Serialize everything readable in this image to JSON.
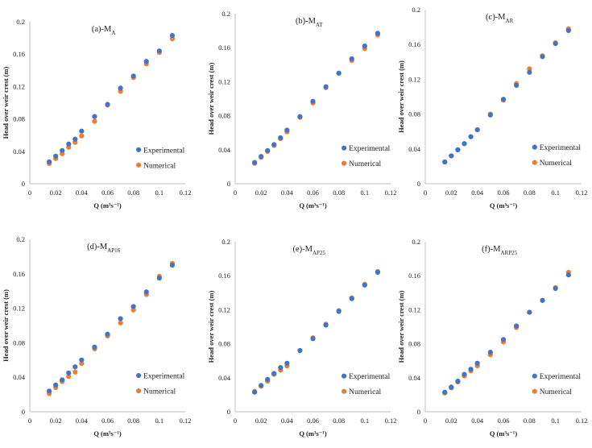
{
  "colors": {
    "experimental": "#4472c4",
    "numerical": "#ed7d31",
    "axis": "#bfbfbf",
    "text": "#222222"
  },
  "chart_data": [
    {
      "type": "scatter",
      "title": "(a)-M",
      "title_sub": "A",
      "xlabel": "Q (m³s⁻¹)",
      "ylabel": "Head over weir crest (m)",
      "xlim": [
        0,
        0.12
      ],
      "ylim": [
        0,
        0.2
      ],
      "xticks": [
        "0",
        "0.02",
        "0.04",
        "0.06",
        "0.08",
        "0.1",
        "0.12"
      ],
      "yticks": [
        "0",
        "0.04",
        "0.08",
        "0.12",
        "0.16",
        "0.2"
      ],
      "legend": [
        "Experimental",
        "Numerical"
      ],
      "series": [
        {
          "name": "Experimental",
          "x": [
            0.015,
            0.02,
            0.025,
            0.03,
            0.035,
            0.04,
            0.05,
            0.06,
            0.07,
            0.08,
            0.09,
            0.1,
            0.11
          ],
          "y": [
            0.027,
            0.034,
            0.041,
            0.049,
            0.055,
            0.065,
            0.083,
            0.098,
            0.118,
            0.133,
            0.151,
            0.164,
            0.183
          ]
        },
        {
          "name": "Numerical",
          "x": [
            0.015,
            0.02,
            0.025,
            0.03,
            0.035,
            0.04,
            0.05,
            0.06,
            0.07,
            0.08,
            0.09,
            0.1,
            0.11
          ],
          "y": [
            0.025,
            0.031,
            0.037,
            0.045,
            0.051,
            0.059,
            0.077,
            0.097,
            0.114,
            0.131,
            0.148,
            0.162,
            0.179
          ]
        }
      ]
    },
    {
      "type": "scatter",
      "title": "(b)-M",
      "title_sub": "AT",
      "xlabel": "Q (m³s⁻¹)",
      "ylabel": "Head over weir crest (m)",
      "xlim": [
        0,
        0.12
      ],
      "ylim": [
        0,
        0.2
      ],
      "xticks": [
        "0",
        "0.02",
        "0.04",
        "0.06",
        "0.08",
        "0.1",
        "0.12"
      ],
      "yticks": [
        "0",
        "0.04",
        "0.08",
        "0.12",
        "0.16",
        "0.2"
      ],
      "legend": [
        "Experimental",
        "Numerical"
      ],
      "series": [
        {
          "name": "Experimental",
          "x": [
            0.015,
            0.02,
            0.025,
            0.03,
            0.035,
            0.04,
            0.05,
            0.06,
            0.07,
            0.08,
            0.09,
            0.1,
            0.11
          ],
          "y": [
            0.025,
            0.032,
            0.039,
            0.046,
            0.054,
            0.063,
            0.079,
            0.097,
            0.114,
            0.13,
            0.147,
            0.162,
            0.177
          ]
        },
        {
          "name": "Numerical",
          "x": [
            0.015,
            0.02,
            0.025,
            0.03,
            0.035,
            0.04,
            0.05,
            0.06,
            0.07,
            0.08,
            0.09,
            0.1,
            0.11
          ],
          "y": [
            0.024,
            0.031,
            0.038,
            0.045,
            0.053,
            0.061,
            0.078,
            0.095,
            0.113,
            0.13,
            0.145,
            0.159,
            0.175
          ]
        }
      ]
    },
    {
      "type": "scatter",
      "title": "(c)-M",
      "title_sub": "AR",
      "xlabel": "Q (m³s⁻¹)",
      "ylabel": "Head over weir crest (m)",
      "xlim": [
        0,
        0.12
      ],
      "ylim": [
        0,
        0.2
      ],
      "xticks": [
        "0",
        "0.02",
        "0.04",
        "0.06",
        "0.08",
        "0.1",
        "0.12"
      ],
      "yticks": [
        "0",
        "0.04",
        "0.08",
        "0.12",
        "0.16",
        "0.2"
      ],
      "legend": [
        "Experimental",
        "Numerical"
      ],
      "series": [
        {
          "name": "Experimental",
          "x": [
            0.015,
            0.02,
            0.025,
            0.03,
            0.035,
            0.04,
            0.05,
            0.06,
            0.07,
            0.08,
            0.09,
            0.1,
            0.11
          ],
          "y": [
            0.025,
            0.032,
            0.039,
            0.046,
            0.054,
            0.062,
            0.079,
            0.097,
            0.113,
            0.128,
            0.146,
            0.161,
            0.176
          ]
        },
        {
          "name": "Numerical",
          "x": [
            0.015,
            0.02,
            0.025,
            0.03,
            0.035,
            0.04,
            0.05,
            0.06,
            0.07,
            0.08,
            0.09,
            0.1,
            0.11
          ],
          "y": [
            0.025,
            0.032,
            0.039,
            0.046,
            0.054,
            0.062,
            0.08,
            0.096,
            0.115,
            0.132,
            0.147,
            0.162,
            0.178
          ]
        }
      ]
    },
    {
      "type": "scatter",
      "title": "(d)-M",
      "title_sub": "AP16",
      "xlabel": "Q (m³s⁻¹)",
      "ylabel": "Head over weir crest (m)",
      "xlim": [
        0,
        0.12
      ],
      "ylim": [
        0,
        0.2
      ],
      "xticks": [
        "0",
        "0.02",
        "0.04",
        "0.06",
        "0.08",
        "0.1",
        "0.12"
      ],
      "yticks": [
        "0",
        "0.04",
        "0.08",
        "0.12",
        "0.16",
        "0.2"
      ],
      "legend": [
        "Experimental",
        "Numerical"
      ],
      "series": [
        {
          "name": "Experimental",
          "x": [
            0.015,
            0.02,
            0.025,
            0.03,
            0.035,
            0.04,
            0.05,
            0.06,
            0.07,
            0.08,
            0.09,
            0.1,
            0.11
          ],
          "y": [
            0.024,
            0.031,
            0.037,
            0.045,
            0.052,
            0.06,
            0.075,
            0.09,
            0.108,
            0.122,
            0.139,
            0.155,
            0.17
          ]
        },
        {
          "name": "Numerical",
          "x": [
            0.015,
            0.02,
            0.025,
            0.03,
            0.035,
            0.04,
            0.05,
            0.06,
            0.07,
            0.08,
            0.09,
            0.1,
            0.11
          ],
          "y": [
            0.021,
            0.028,
            0.035,
            0.041,
            0.046,
            0.056,
            0.073,
            0.088,
            0.103,
            0.118,
            0.136,
            0.157,
            0.172
          ]
        }
      ]
    },
    {
      "type": "scatter",
      "title": "(e)-M",
      "title_sub": "AP25",
      "xlabel": "Q (m³s⁻¹)",
      "ylabel": "Head over weir crest (m)",
      "xlim": [
        0,
        0.12
      ],
      "ylim": [
        0,
        0.2
      ],
      "xticks": [
        "0",
        "0.02",
        "0.04",
        "0.06",
        "0.08",
        "0.1",
        "0.12"
      ],
      "yticks": [
        "0",
        "0.04",
        "0.08",
        "0.12",
        "0.16",
        "0.2"
      ],
      "legend": [
        "Experimental",
        "Numerical"
      ],
      "series": [
        {
          "name": "Experimental",
          "x": [
            0.015,
            0.02,
            0.025,
            0.03,
            0.035,
            0.04,
            0.05,
            0.06,
            0.07,
            0.08,
            0.09,
            0.1,
            0.11
          ],
          "y": [
            0.023,
            0.031,
            0.038,
            0.045,
            0.052,
            0.057,
            0.072,
            0.086,
            0.102,
            0.118,
            0.133,
            0.149,
            0.164
          ]
        },
        {
          "name": "Numerical",
          "x": [
            0.015,
            0.02,
            0.025,
            0.03,
            0.035,
            0.04,
            0.05,
            0.06,
            0.07,
            0.08,
            0.09,
            0.1,
            0.11
          ],
          "y": [
            0.024,
            0.03,
            0.036,
            0.044,
            0.049,
            0.054,
            0.072,
            0.087,
            0.103,
            0.119,
            0.134,
            0.15,
            0.165
          ]
        }
      ]
    },
    {
      "type": "scatter",
      "title": "(f)-M",
      "title_sub": "ARP25",
      "xlabel": "Q (m³s⁻¹)",
      "ylabel": "Head over weir crest (m)",
      "xlim": [
        0,
        0.12
      ],
      "ylim": [
        0,
        0.2
      ],
      "xticks": [
        "0",
        "0.02",
        "0.04",
        "0.06",
        "0.08",
        "0.1",
        "0.12"
      ],
      "yticks": [
        "0",
        "0.04",
        "0.08",
        "0.12",
        "0.16",
        "0.2"
      ],
      "legend": [
        "Experimental",
        "Numerical"
      ],
      "series": [
        {
          "name": "Experimental",
          "x": [
            0.015,
            0.02,
            0.025,
            0.03,
            0.035,
            0.04,
            0.05,
            0.06,
            0.07,
            0.08,
            0.09,
            0.1,
            0.11
          ],
          "y": [
            0.023,
            0.029,
            0.036,
            0.044,
            0.05,
            0.057,
            0.07,
            0.085,
            0.101,
            0.117,
            0.131,
            0.145,
            0.161
          ]
        },
        {
          "name": "Numerical",
          "x": [
            0.015,
            0.02,
            0.025,
            0.03,
            0.035,
            0.04,
            0.05,
            0.06,
            0.07,
            0.08,
            0.09,
            0.1,
            0.11
          ],
          "y": [
            0.022,
            0.028,
            0.035,
            0.042,
            0.048,
            0.054,
            0.067,
            0.082,
            0.099,
            0.117,
            0.131,
            0.146,
            0.164
          ]
        }
      ]
    }
  ]
}
